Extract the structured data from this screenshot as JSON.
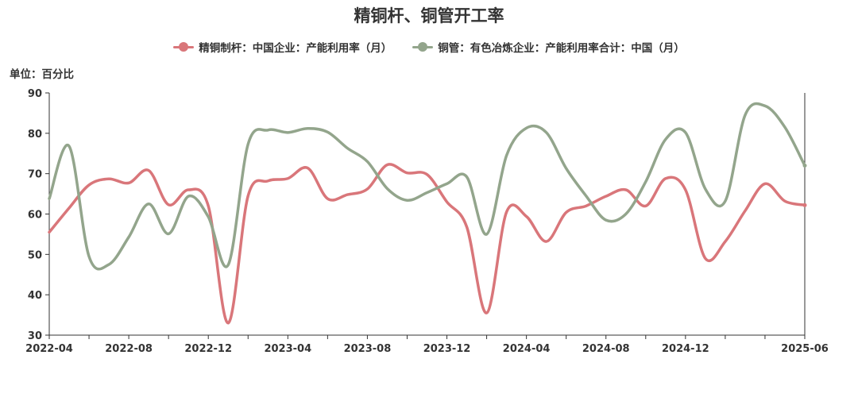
{
  "chart_data": {
    "type": "line",
    "title": "精铜杆、铜管开工率",
    "unit_label": "单位：百分比",
    "xlabel": "",
    "ylabel": "",
    "ylim": [
      30,
      90
    ],
    "yticks": [
      "30",
      "40",
      "50",
      "60",
      "70",
      "80",
      "90"
    ],
    "xlim": [
      "2022-04",
      "2025-06"
    ],
    "xticks": [
      "2022-04",
      "2022-08",
      "2022-12",
      "2023-04",
      "2023-08",
      "2023-12",
      "2024-04",
      "2024-08",
      "2024-12",
      "2025-06"
    ],
    "legend_position": "top-center",
    "grid": false,
    "x": [
      "2022-04",
      "2022-05",
      "2022-06",
      "2022-07",
      "2022-08",
      "2022-09",
      "2022-10",
      "2022-11",
      "2022-12",
      "2023-01",
      "2023-02",
      "2023-03",
      "2023-04",
      "2023-05",
      "2023-06",
      "2023-07",
      "2023-08",
      "2023-09",
      "2023-10",
      "2023-11",
      "2023-12",
      "2024-01",
      "2024-02",
      "2024-03",
      "2024-04",
      "2024-05",
      "2024-06",
      "2024-07",
      "2024-08",
      "2024-09",
      "2024-10",
      "2024-11",
      "2024-12",
      "2025-01",
      "2025-02",
      "2025-03",
      "2025-04",
      "2025-05",
      "2025-06"
    ],
    "series": [
      {
        "name": "精铜制杆：中国企业：产能利用率（月）",
        "color": "#d9767a",
        "values": [
          55.5,
          61.5,
          67.2,
          68.7,
          67.7,
          70.8,
          62.3,
          66.0,
          62.0,
          33.0,
          64.5,
          68.2,
          68.8,
          71.4,
          63.8,
          64.8,
          66.2,
          72.2,
          70.2,
          69.8,
          63.0,
          56.8,
          35.5,
          60.5,
          59.4,
          53.2,
          60.4,
          62.0,
          64.4,
          66.0,
          62.0,
          68.8,
          66.0,
          49.0,
          53.2,
          60.8,
          67.5,
          63.2,
          62.2
        ]
      },
      {
        "name": "铜管：有色冶炼企业：产能利用率合计：中国（月）",
        "color": "#93a58c",
        "values": [
          63.8,
          76.8,
          49.5,
          47.5,
          54.3,
          62.5,
          55.1,
          64.4,
          59.3,
          47.4,
          77.3,
          80.8,
          80.2,
          81.2,
          80.3,
          76.3,
          73.0,
          66.3,
          63.4,
          65.3,
          67.5,
          69.2,
          55.0,
          74.5,
          81.3,
          80.2,
          71.3,
          64.5,
          58.5,
          60.0,
          68.0,
          78.5,
          80.2,
          66.2,
          63.2,
          84.5,
          86.8,
          81.5,
          72.0
        ]
      }
    ]
  }
}
